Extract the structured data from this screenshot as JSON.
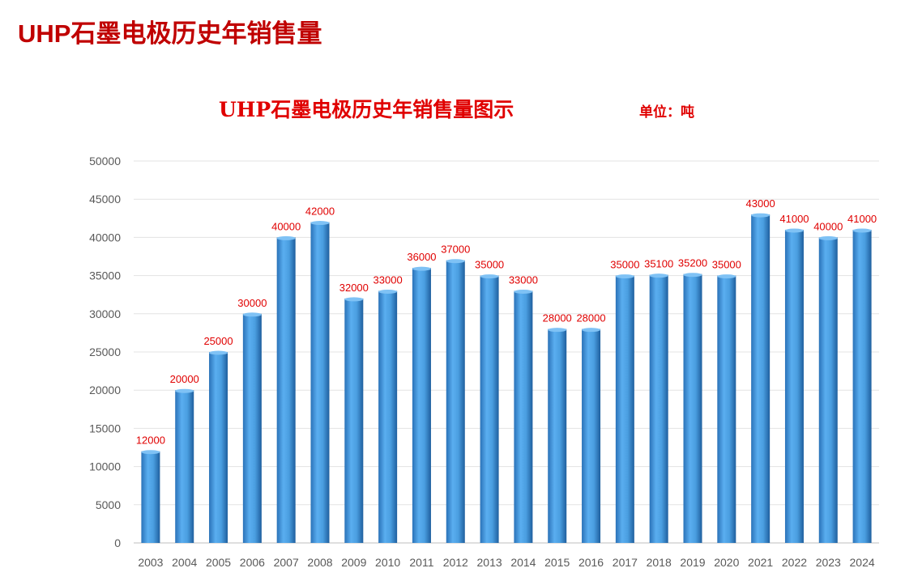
{
  "page": {
    "title": "UHP石墨电极历史年销售量"
  },
  "chart_data": {
    "type": "bar",
    "title": "UHP石墨电极历史年销售量图示",
    "unit_label": "单位：吨",
    "xlabel": "",
    "ylabel": "",
    "ylim": [
      0,
      50000
    ],
    "yticks": [
      0,
      5000,
      10000,
      15000,
      20000,
      25000,
      30000,
      35000,
      40000,
      45000,
      50000
    ],
    "grid": true,
    "categories": [
      "2003",
      "2004",
      "2005",
      "2006",
      "2007",
      "2008",
      "2009",
      "2010",
      "2011",
      "2012",
      "2013",
      "2014",
      "2015",
      "2016",
      "2017",
      "2018",
      "2019",
      "2020",
      "2021",
      "2022",
      "2023",
      "2024"
    ],
    "values": [
      12000,
      20000,
      25000,
      30000,
      40000,
      42000,
      32000,
      33000,
      36000,
      37000,
      35000,
      33000,
      28000,
      28000,
      35000,
      35100,
      35200,
      35000,
      43000,
      41000,
      40000,
      41000
    ],
    "colors": {
      "bar": "#4a9ee0",
      "label": "#e00000",
      "title": "#c00000"
    }
  }
}
